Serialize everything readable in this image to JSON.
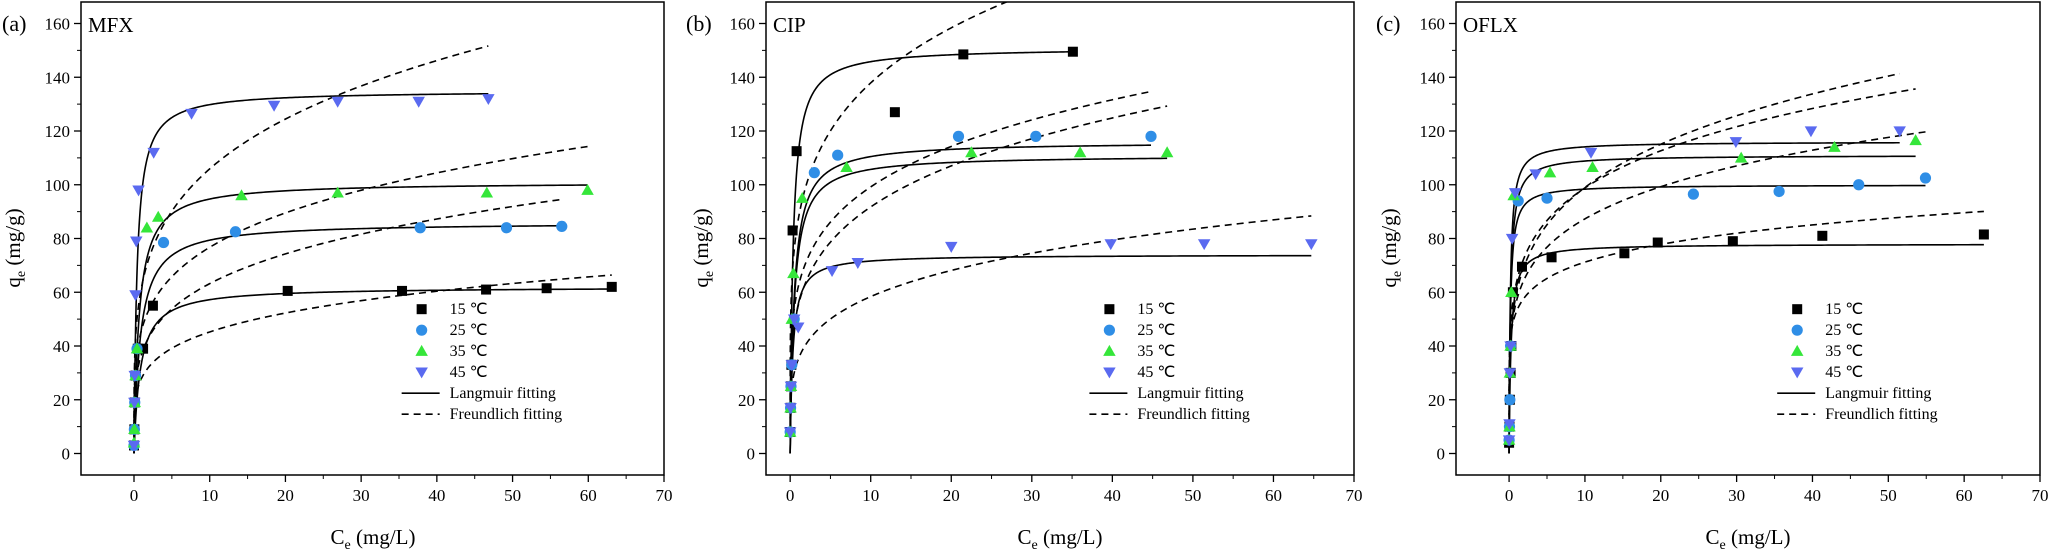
{
  "figure": {
    "legend_labels": {
      "t15": "15 ℃",
      "t25": "25 ℃",
      "t35": "35 ℃",
      "t45": "45 ℃",
      "langmuir": "Langmuir fitting",
      "freundlich": "Freundlich fitting"
    },
    "colors": {
      "t15": "#000000",
      "t25": "#2f8ee6",
      "t35": "#35e63a",
      "t45": "#5a6af0"
    },
    "series_keys": [
      "t15",
      "t25",
      "t35",
      "t45"
    ],
    "markers": {
      "t15": "square",
      "t25": "circle",
      "t35": "triangle-up",
      "t45": "triangle-down"
    }
  },
  "chart_data": [
    {
      "type": "scatter",
      "panel_label": "(a)",
      "title": "MFX",
      "xlabel": "Ce (mg/L)",
      "ylabel": "qe (mg/g)",
      "xlim": [
        -7,
        70
      ],
      "ylim": [
        -8,
        168
      ],
      "xticks": [
        0,
        10,
        20,
        30,
        40,
        50,
        60,
        70
      ],
      "yticks": [
        0,
        20,
        40,
        60,
        80,
        100,
        120,
        140,
        160
      ],
      "grid": false,
      "legend_position": "bottom-right",
      "series": [
        {
          "key": "t15",
          "name": "15 ℃",
          "x": [
            0,
            0.05,
            0.1,
            0.2,
            0.5,
            1.2,
            2.5,
            20.3,
            35.4,
            46.5,
            54.5,
            63.1
          ],
          "y": [
            3,
            9,
            19,
            29,
            39,
            39,
            55,
            60.5,
            60.5,
            61,
            61.5,
            62
          ],
          "langmuir": {
            "qm": 62,
            "KL": 1.2
          },
          "freundlich": {
            "KF": 28,
            "n": 4.8
          }
        },
        {
          "key": "t25",
          "name": "25 ℃",
          "x": [
            0,
            0.05,
            0.1,
            0.2,
            0.4,
            3.9,
            13.4,
            37.8,
            49.2,
            56.5
          ],
          "y": [
            3,
            9,
            19,
            29,
            39,
            78.5,
            82.5,
            84,
            84,
            84.5
          ],
          "langmuir": {
            "qm": 86,
            "KL": 1.2
          },
          "freundlich": {
            "KF": 37,
            "n": 4.3
          }
        },
        {
          "key": "t35",
          "name": "35 ℃",
          "x": [
            0,
            0.05,
            0.1,
            0.2,
            0.4,
            1.7,
            3.2,
            14.2,
            26.9,
            46.6,
            59.9
          ],
          "y": [
            4,
            9,
            19,
            29,
            39,
            84,
            88,
            96,
            97,
            97,
            98
          ],
          "langmuir": {
            "qm": 101,
            "KL": 1.5
          },
          "freundlich": {
            "KF": 46,
            "n": 4.5
          }
        },
        {
          "key": "t45",
          "name": "45 ℃",
          "x": [
            0,
            0.05,
            0.1,
            0.2,
            0.3,
            0.6,
            2.6,
            7.6,
            18.5,
            26.9,
            37.6,
            46.8
          ],
          "y": [
            3,
            19,
            29,
            59,
            79,
            98,
            112,
            126.5,
            129.5,
            131,
            131,
            132
          ],
          "langmuir": {
            "qm": 135,
            "KL": 2.5
          },
          "freundlich": {
            "KF": 62,
            "n": 4.3
          }
        }
      ]
    },
    {
      "type": "scatter",
      "panel_label": "(b)",
      "title": "CIP",
      "xlabel": "Ce (mg/L)",
      "ylabel": "qe (mg/g)",
      "xlim": [
        -3,
        70
      ],
      "ylim": [
        -8,
        168
      ],
      "xticks": [
        0,
        10,
        20,
        30,
        40,
        50,
        60,
        70
      ],
      "yticks": [
        0,
        20,
        40,
        60,
        80,
        100,
        120,
        140,
        160
      ],
      "grid": false,
      "legend_position": "bottom-right",
      "series": [
        {
          "key": "t15",
          "name": "15 ℃",
          "x": [
            0,
            0.05,
            0.1,
            0.15,
            0.3,
            0.8,
            13.0,
            21.5,
            35.1
          ],
          "y": [
            8,
            17,
            25,
            33,
            83,
            112.5,
            127,
            148.5,
            149.5
          ],
          "langmuir": {
            "qm": 151,
            "KL": 2.8
          },
          "freundlich": {
            "KF": 87,
            "n": 5.0
          }
        },
        {
          "key": "t25",
          "name": "25 ℃",
          "x": [
            0,
            0.05,
            0.1,
            0.2,
            0.5,
            3.0,
            5.9,
            20.9,
            30.5,
            44.8
          ],
          "y": [
            8,
            17,
            25,
            33,
            50,
            104.5,
            111,
            118,
            118,
            118
          ],
          "langmuir": {
            "qm": 116,
            "KL": 2.0
          },
          "freundlich": {
            "KF": 62,
            "n": 4.9
          }
        },
        {
          "key": "t35",
          "name": "35 ℃",
          "x": [
            0,
            0.05,
            0.1,
            0.2,
            0.4,
            1.5,
            7.0,
            22.5,
            36.0,
            46.8
          ],
          "y": [
            8,
            17,
            25,
            50,
            67,
            95,
            106.5,
            112,
            112,
            112
          ],
          "langmuir": {
            "qm": 111,
            "KL": 2.0
          },
          "freundlich": {
            "KF": 55,
            "n": 4.5
          }
        },
        {
          "key": "t45",
          "name": "45 ℃",
          "x": [
            0,
            0.05,
            0.1,
            0.2,
            0.5,
            1.0,
            5.2,
            8.4,
            20.0,
            39.8,
            51.4,
            64.7
          ],
          "y": [
            8,
            17,
            25,
            33,
            50,
            47,
            68,
            71,
            77,
            78,
            78,
            78
          ],
          "langmuir": {
            "qm": 74,
            "KL": 3.0
          },
          "freundlich": {
            "KF": 35,
            "n": 4.5
          }
        }
      ]
    },
    {
      "type": "scatter",
      "panel_label": "(c)",
      "title": "OFLX",
      "xlabel": "Ce (mg/L)",
      "ylabel": "qe (mg/g)",
      "xlim": [
        -7,
        70
      ],
      "ylim": [
        -8,
        168
      ],
      "xticks": [
        0,
        10,
        20,
        30,
        40,
        50,
        60,
        70
      ],
      "yticks": [
        0,
        20,
        40,
        60,
        80,
        100,
        120,
        140,
        160
      ],
      "grid": false,
      "legend_position": "bottom-right",
      "series": [
        {
          "key": "t15",
          "name": "15 ℃",
          "x": [
            0,
            0.05,
            0.1,
            0.2,
            0.3,
            0.5,
            1.7,
            5.6,
            15.2,
            19.6,
            29.5,
            41.3,
            62.6
          ],
          "y": [
            4,
            10,
            20,
            30,
            40,
            60,
            69.5,
            73,
            74.5,
            78.5,
            79,
            81,
            81.5
          ],
          "langmuir": {
            "qm": 78,
            "KL": 4.0
          },
          "freundlich": {
            "KF": 53,
            "n": 7.8
          }
        },
        {
          "key": "t25",
          "name": "25 ℃",
          "x": [
            0,
            0.05,
            0.1,
            0.2,
            1.2,
            5.0,
            24.3,
            35.6,
            46.1,
            54.9
          ],
          "y": [
            5,
            10,
            20,
            40,
            94,
            95,
            96.5,
            97.5,
            100,
            102.5
          ],
          "langmuir": {
            "qm": 100,
            "KL": 6.0
          },
          "freundlich": {
            "KF": 57,
            "n": 5.4
          }
        },
        {
          "key": "t35",
          "name": "35 ℃",
          "x": [
            0,
            0.05,
            0.1,
            0.2,
            0.3,
            0.6,
            5.4,
            11.0,
            30.6,
            42.9,
            53.6
          ],
          "y": [
            5,
            10,
            30,
            40,
            60,
            96,
            104.5,
            106.5,
            110,
            114,
            116.5
          ],
          "langmuir": {
            "qm": 111,
            "KL": 5.0
          },
          "freundlich": {
            "KF": 64,
            "n": 5.3
          }
        },
        {
          "key": "t45",
          "name": "45 ℃",
          "x": [
            0,
            0.05,
            0.1,
            0.2,
            0.4,
            0.8,
            3.5,
            10.8,
            29.9,
            39.8,
            51.5
          ],
          "y": [
            5,
            11,
            30,
            40,
            80,
            97,
            104,
            112,
            116,
            120,
            120
          ],
          "langmuir": {
            "qm": 116,
            "KL": 6.0
          },
          "freundlich": {
            "KF": 60,
            "n": 4.6
          }
        }
      ]
    }
  ]
}
